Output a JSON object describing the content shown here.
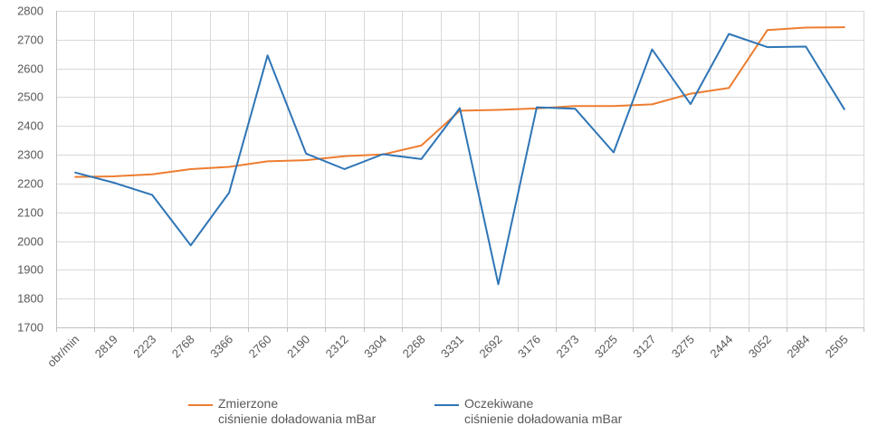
{
  "chart_data": {
    "type": "line",
    "title": "",
    "xlabel": "",
    "ylabel": "",
    "categories": [
      "obr/min",
      "2819",
      "2223",
      "2768",
      "3366",
      "2760",
      "2190",
      "2312",
      "3304",
      "2268",
      "3331",
      "2692",
      "3176",
      "2373",
      "3225",
      "3127",
      "3275",
      "2444",
      "3052",
      "2984",
      "2505"
    ],
    "ylim": [
      1700,
      2800
    ],
    "yticks": [
      1700,
      1800,
      1900,
      2000,
      2100,
      2200,
      2300,
      2400,
      2500,
      2600,
      2700,
      2800
    ],
    "grid": true,
    "legend_position": "bottom",
    "series": [
      {
        "name_line1": "Zmierzone",
        "name_line2": "ciśnienie doładowania mBar",
        "color": "#ED7D31",
        "values": [
          2223,
          2225,
          2232,
          2250,
          2258,
          2277,
          2281,
          2295,
          2301,
          2332,
          2453,
          2456,
          2461,
          2469,
          2469,
          2475,
          2512,
          2532,
          2733,
          2742,
          2743
        ]
      },
      {
        "name_line1": "Oczekiwane",
        "name_line2": "ciśnienie doładowania mBar",
        "color": "#2E75B6",
        "values": [
          2238,
          2203,
          2160,
          1985,
          2168,
          2645,
          2304,
          2250,
          2302,
          2285,
          2462,
          1850,
          2465,
          2460,
          2308,
          2666,
          2476,
          2720,
          2674,
          2676,
          2458
        ]
      }
    ]
  },
  "legend": {
    "items": [
      {
        "line1": "Zmierzone",
        "line2": "ciśnienie doładowania mBar",
        "color": "#ED7D31"
      },
      {
        "line1": "Oczekiwane",
        "line2": "ciśnienie doładowania mBar",
        "color": "#2E75B6"
      }
    ]
  }
}
